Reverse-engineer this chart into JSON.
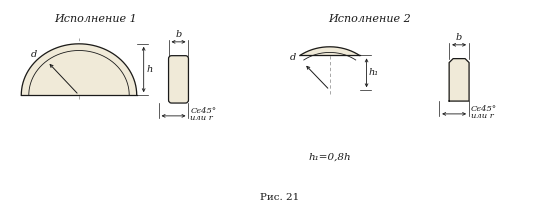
{
  "title1": "Исполнение 1",
  "title2": "Исполнение 2",
  "caption": "Рис. 21",
  "label_b": "b",
  "label_h": "h",
  "label_h1": "h₁",
  "label_d": "d",
  "label_chamfer": "Cє45°",
  "label_or": "или r",
  "label_formula": "h₁=0,8h",
  "fill_color": "#f0ead8",
  "line_color": "#1a1a1a",
  "bg_color": "#ffffff"
}
